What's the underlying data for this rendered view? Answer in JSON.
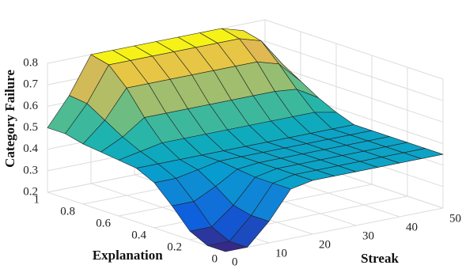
{
  "chart_data": {
    "type": "surface",
    "x_label": "Streak",
    "y_label": "Explanation",
    "z_label": "Category Failure",
    "x": [
      0,
      5,
      10,
      15,
      20,
      25,
      30,
      35,
      40,
      45,
      50
    ],
    "y": [
      0,
      0.1,
      0.2,
      0.3,
      0.4,
      0.5,
      0.6,
      0.7,
      0.8,
      0.9,
      1
    ],
    "z": [
      [
        0.2,
        0.2,
        0.3,
        0.43,
        0.45,
        0.45,
        0.45,
        0.45,
        0.45,
        0.45,
        0.45
      ],
      [
        0.2,
        0.2,
        0.3,
        0.43,
        0.45,
        0.45,
        0.45,
        0.45,
        0.45,
        0.45,
        0.45
      ],
      [
        0.24,
        0.24,
        0.32,
        0.43,
        0.45,
        0.45,
        0.45,
        0.45,
        0.45,
        0.45,
        0.45
      ],
      [
        0.33,
        0.33,
        0.38,
        0.44,
        0.45,
        0.45,
        0.45,
        0.45,
        0.45,
        0.45,
        0.45
      ],
      [
        0.41,
        0.41,
        0.43,
        0.45,
        0.45,
        0.45,
        0.45,
        0.45,
        0.45,
        0.45,
        0.45
      ],
      [
        0.45,
        0.45,
        0.45,
        0.45,
        0.45,
        0.45,
        0.45,
        0.45,
        0.45,
        0.45,
        0.45
      ],
      [
        0.46,
        0.48,
        0.5,
        0.5,
        0.5,
        0.5,
        0.5,
        0.5,
        0.5,
        0.5,
        0.48
      ],
      [
        0.47,
        0.52,
        0.59,
        0.59,
        0.59,
        0.59,
        0.59,
        0.59,
        0.59,
        0.58,
        0.52
      ],
      [
        0.48,
        0.57,
        0.7,
        0.7,
        0.7,
        0.7,
        0.7,
        0.7,
        0.7,
        0.67,
        0.57
      ],
      [
        0.5,
        0.62,
        0.78,
        0.78,
        0.78,
        0.78,
        0.78,
        0.78,
        0.78,
        0.75,
        0.62
      ],
      [
        0.5,
        0.63,
        0.8,
        0.8,
        0.8,
        0.8,
        0.8,
        0.8,
        0.8,
        0.77,
        0.63
      ]
    ],
    "xlim": [
      0,
      50
    ],
    "ylim": [
      0,
      1
    ],
    "zlim": [
      0.2,
      0.8
    ],
    "xticks": [
      0,
      10,
      20,
      30,
      40,
      50
    ],
    "yticks": [
      0,
      0.2,
      0.4,
      0.6,
      0.8,
      1
    ],
    "zticks": [
      0.2,
      0.3,
      0.4,
      0.5,
      0.6,
      0.7,
      0.8
    ],
    "grid": true,
    "colormap": "parula"
  }
}
